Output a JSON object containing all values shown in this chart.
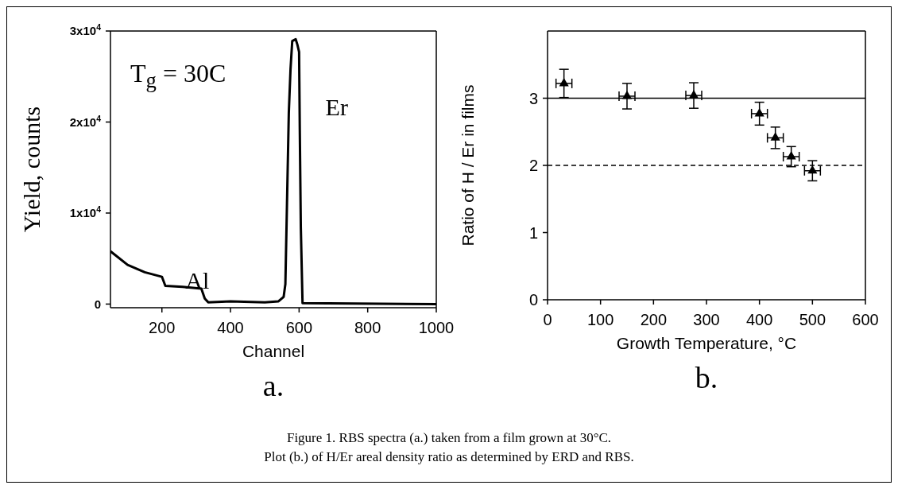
{
  "chart_data": [
    {
      "type": "line",
      "xlabel": "Channel",
      "ylabel": "Yield, counts",
      "xlim": [
        50,
        1000
      ],
      "xticks": [
        200,
        400,
        600,
        800,
        1000
      ],
      "ylim": [
        -400,
        30000
      ],
      "yticks": [
        0,
        {
          "value": 10000,
          "label": "1x10$^{4}$"
        },
        {
          "value": 20000,
          "label": "2x10$^{4}$"
        },
        {
          "value": 30000,
          "label": "3x10$^{4}$"
        }
      ],
      "grid": false,
      "marker": "none",
      "line_style": "solid",
      "annotations": [
        "T$_{g}$ = 30C",
        "Al",
        "Er",
        "a."
      ],
      "series": [
        {
          "color": "#000000",
          "x": [
            50,
            100,
            150,
            200,
            210,
            260,
            315,
            325,
            335,
            400,
            500,
            540,
            555,
            560,
            565,
            570,
            575,
            580,
            590,
            595,
            600,
            602,
            605,
            610,
            1000
          ],
          "values": [
            5800,
            4300,
            3500,
            3000,
            2000,
            1900,
            1700,
            600,
            200,
            300,
            200,
            300,
            800,
            2200,
            11600,
            21000,
            25800,
            28900,
            29100,
            28500,
            27700,
            19200,
            8500,
            100,
            0
          ]
        }
      ]
    },
    {
      "type": "scatter",
      "xlabel": "Growth Temperature, °C",
      "ylabel": "Ratio of H / Er in films",
      "xlim": [
        0,
        600
      ],
      "xticks": [
        0,
        100,
        200,
        300,
        400,
        500,
        600
      ],
      "ylim": [
        0,
        4
      ],
      "yticks": [
        0,
        1,
        2,
        3
      ],
      "grid": false,
      "marker": "triangle",
      "color": "#000000",
      "x": [
        31,
        150,
        276,
        400,
        430,
        460,
        500
      ],
      "values": [
        3.22,
        3.03,
        3.04,
        2.77,
        2.41,
        2.13,
        1.92
      ],
      "errors": [
        0.21,
        0.19,
        0.19,
        0.17,
        0.16,
        0.15,
        0.15
      ],
      "xerrors": [
        15,
        15,
        15,
        15,
        15,
        15,
        15
      ],
      "ref_lines": [
        {
          "axis": "y",
          "value": 3,
          "line_style": "solid",
          "color": "#000000"
        },
        {
          "axis": "y",
          "value": 2,
          "line_style": "dashed",
          "color": "#000000"
        }
      ],
      "annotations": [
        "b.",
        "Figure 1.  RBS spectra (a.) taken from a film grown at 30°C.",
        "Plot (b.) of H/Er areal density ratio as determined  by ERD and RBS."
      ]
    }
  ]
}
